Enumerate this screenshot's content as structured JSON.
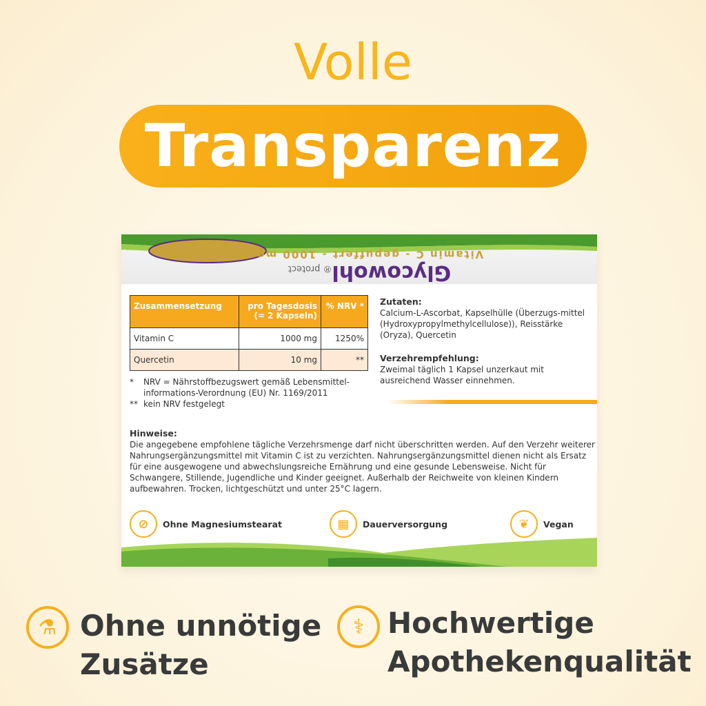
{
  "headline": {
    "top": "Volle",
    "pill": "Transparenz"
  },
  "colors": {
    "accent": "#f6a91d",
    "green": "#6ab23a",
    "brand_purple": "#5a2d84"
  },
  "box": {
    "brand": "Glycowohl",
    "brand_sub": "protect",
    "tagline": "Vitamin C - gepuffert - 1000 mg",
    "table": {
      "headers": [
        "Zusammensetzung",
        "pro Tagesdosis (= 2 Kapseln)",
        "% NRV *"
      ],
      "rows": [
        [
          "Vitamin C",
          "1000 mg",
          "1250%"
        ],
        [
          "Quercetin",
          "10 mg",
          "**"
        ]
      ]
    },
    "footnotes": [
      "NRV = Nährstoffbezugswert gemäß Lebensmittel-informations-Verordnung (EU) Nr. 1169/2011",
      "kein NRV festgelegt"
    ],
    "footnote_marks": [
      "*",
      "**"
    ],
    "zutaten_title": "Zutaten:",
    "zutaten": "Calcium-L-Ascorbat, Kapselhülle (Überzugs-mittel (Hydroxypropylmethylcellulose)), Reisstärke (Oryza), Quercetin",
    "verzehr_title": "Verzehrempfehlung:",
    "verzehr": "Zweimal täglich 1 Kapsel unzerkaut mit ausreichend Wasser einnehmen.",
    "hinweise_title": "Hinweise:",
    "hinweise": "Die angegebene empfohlene tägliche Verzehrsmenge darf nicht überschritten werden. Auf den Verzehr weiterer Nahrungsergänzungsmittel mit Vitamin C ist zu verzichten. Nahrungsergänzungsmittel dienen nicht als Ersatz für eine ausgewogene und abwechslungsreiche Ernährung und eine gesunde Lebensweise. Nicht für Schwangere, Stillende, Jugendliche und Kinder geeignet. Außerhalb der Reichweite von kleinen Kindern aufbewahren. Trocken, lichtgeschützt und unter 25°C lagern.",
    "features": [
      {
        "label": "Ohne Magnesiumstearat",
        "icon": "no-molecule-icon"
      },
      {
        "label": "Dauerversorgung",
        "icon": "calendar-icon"
      },
      {
        "label": "Vegan",
        "icon": "leaf-icon"
      }
    ]
  },
  "benefits": [
    {
      "line1": "Ohne unnötige",
      "line2": "Zusätze",
      "icon": "no-flask-icon"
    },
    {
      "line1": "Hochwertige",
      "line2": "Apothekenqualität",
      "icon": "pharmacy-icon"
    }
  ]
}
